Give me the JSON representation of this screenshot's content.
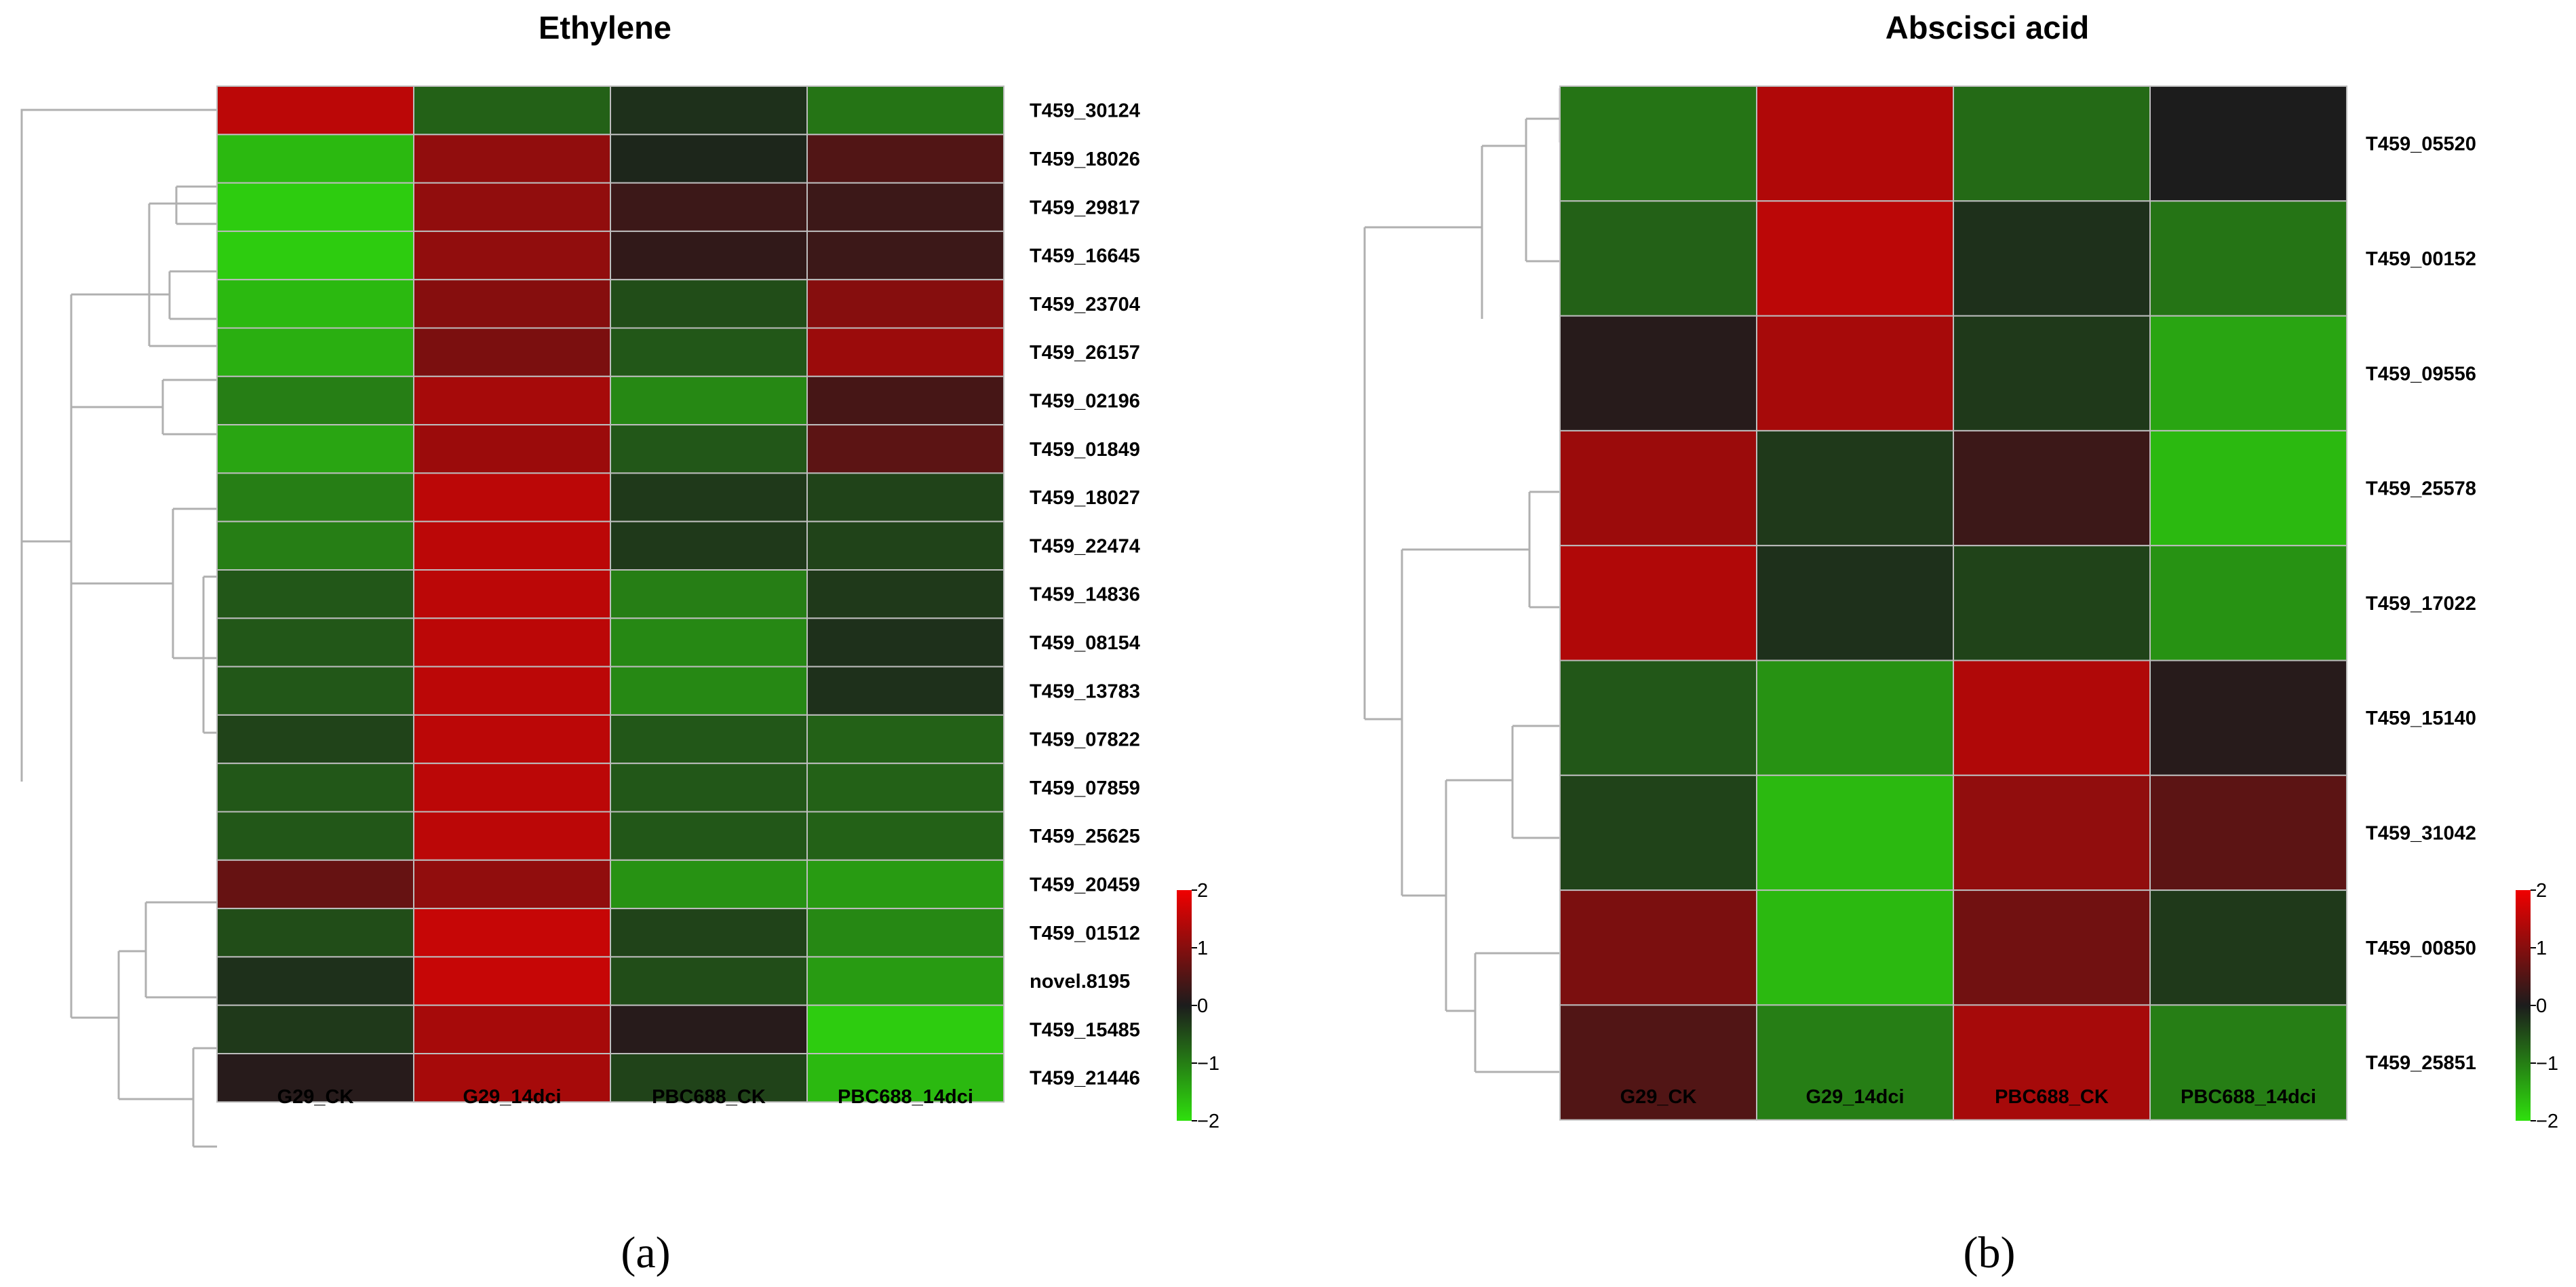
{
  "chart_data": [
    {
      "type": "heatmap",
      "title": "Ethylene",
      "panel_label": "(a)",
      "columns": [
        "G29_CK",
        "G29_14dci",
        "PBC688_CK",
        "PBC688_14dci"
      ],
      "rows": [
        "T459_30124",
        "T459_18026",
        "T459_29817",
        "T459_16645",
        "T459_23704",
        "T459_26157",
        "T459_02196",
        "T459_01849",
        "T459_18027",
        "T459_22474",
        "T459_14836",
        "T459_08154",
        "T459_13783",
        "T459_07822",
        "T459_07859",
        "T459_25625",
        "T459_20459",
        "T459_01512",
        "novel.8195",
        "T459_15485",
        "T459_21446"
      ],
      "values": [
        [
          1.5,
          -0.7,
          -0.2,
          -0.9
        ],
        [
          -1.6,
          1.1,
          -0.1,
          0.5
        ],
        [
          -1.8,
          1.1,
          0.3,
          0.3
        ],
        [
          -1.8,
          1.1,
          0.2,
          0.3
        ],
        [
          -1.6,
          1.0,
          -0.5,
          1.0
        ],
        [
          -1.5,
          0.9,
          -0.6,
          1.2
        ],
        [
          -1.0,
          1.3,
          -1.1,
          0.4
        ],
        [
          -1.4,
          1.2,
          -0.6,
          0.6
        ],
        [
          -1.0,
          1.5,
          -0.3,
          -0.4
        ],
        [
          -1.0,
          1.5,
          -0.3,
          -0.4
        ],
        [
          -0.6,
          1.5,
          -1.0,
          -0.3
        ],
        [
          -0.6,
          1.5,
          -1.1,
          -0.2
        ],
        [
          -0.6,
          1.5,
          -1.1,
          -0.2
        ],
        [
          -0.4,
          1.5,
          -0.6,
          -0.7
        ],
        [
          -0.6,
          1.5,
          -0.6,
          -0.7
        ],
        [
          -0.6,
          1.5,
          -0.6,
          -0.7
        ],
        [
          0.7,
          1.1,
          -1.2,
          -1.3
        ],
        [
          -0.5,
          1.6,
          -0.4,
          -1.1
        ],
        [
          -0.2,
          1.6,
          -0.5,
          -1.3
        ],
        [
          -0.3,
          1.3,
          0.1,
          -1.8
        ],
        [
          0.1,
          1.3,
          -0.4,
          -1.6
        ]
      ],
      "colorbar": {
        "min": -2,
        "max": 2,
        "ticks": [
          "2",
          "1",
          "0",
          "−1",
          "−2"
        ],
        "low_color": "#2fe00d",
        "mid_color": "#1c1c1c",
        "high_color": "#f00000"
      }
    },
    {
      "type": "heatmap",
      "title": "Abscisci acid",
      "panel_label": "(b)",
      "columns": [
        "G29_CK",
        "G29_14dci",
        "PBC688_CK",
        "PBC688_14dci"
      ],
      "rows": [
        "T459_05520",
        "T459_00152",
        "T459_09556",
        "T459_25578",
        "T459_17022",
        "T459_15140",
        "T459_31042",
        "T459_00850",
        "T459_25851"
      ],
      "values": [
        [
          -0.9,
          1.4,
          -0.8,
          0.0
        ],
        [
          -0.7,
          1.5,
          -0.2,
          -0.9
        ],
        [
          0.1,
          1.3,
          -0.3,
          -1.4
        ],
        [
          1.2,
          -0.3,
          0.3,
          -1.6
        ],
        [
          1.4,
          -0.2,
          -0.4,
          -1.2
        ],
        [
          -0.6,
          -1.2,
          1.4,
          0.1
        ],
        [
          -0.4,
          -1.6,
          1.1,
          0.6
        ],
        [
          0.9,
          -1.6,
          0.8,
          -0.3
        ],
        [
          0.5,
          -1.0,
          1.3,
          -1.0
        ]
      ],
      "colorbar": {
        "min": -2,
        "max": 2,
        "ticks": [
          "2",
          "1",
          "0",
          "−1",
          "−2"
        ],
        "low_color": "#2fe00d",
        "mid_color": "#1c1c1c",
        "high_color": "#f00000"
      }
    }
  ]
}
